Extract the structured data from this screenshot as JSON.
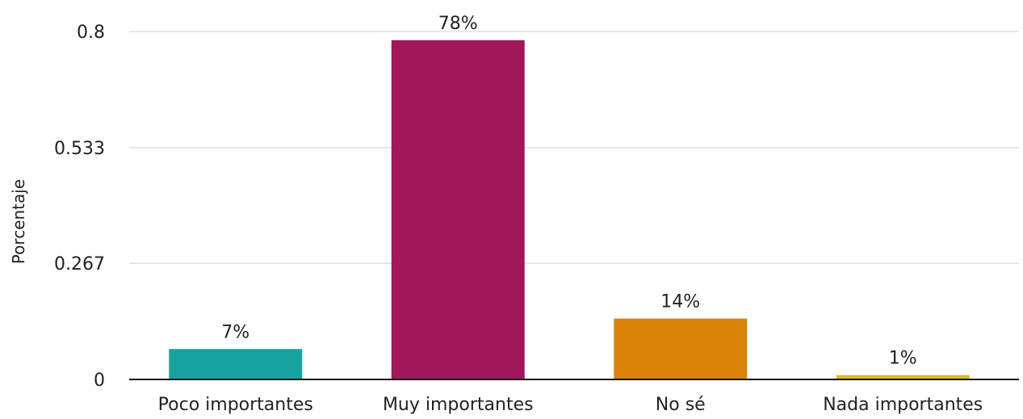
{
  "chart_data": {
    "type": "bar",
    "title": "",
    "xlabel": "",
    "ylabel": "Porcentaje",
    "ylim": [
      0,
      0.8
    ],
    "yticks": [
      0,
      0.267,
      0.533,
      0.8
    ],
    "ytick_labels": [
      "0",
      "0.267",
      "0.533",
      "0.8"
    ],
    "grid": true,
    "categories": [
      "Poco importantes",
      "Muy importantes",
      "No sé",
      "Nada importantes"
    ],
    "values": [
      0.07,
      0.78,
      0.14,
      0.01
    ],
    "data_labels": [
      "7%",
      "78%",
      "14%",
      "1%"
    ],
    "colors": [
      "#17a2a0",
      "#a0185a",
      "#d9830b",
      "#d9c11c"
    ]
  }
}
